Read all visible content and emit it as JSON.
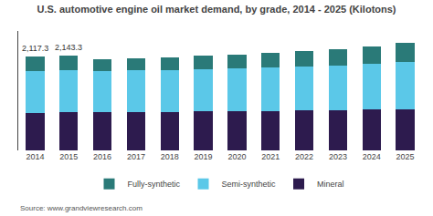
{
  "chart_data": {
    "type": "bar",
    "stacked": true,
    "title": "U.S. automotive engine oil market demand, by grade, 2014 - 2025 (Kilotons)",
    "categories": [
      "2014",
      "2015",
      "2016",
      "2017",
      "2018",
      "2019",
      "2020",
      "2021",
      "2022",
      "2023",
      "2024",
      "2025"
    ],
    "series": [
      {
        "name": "Mineral",
        "color": "#2d1b4e",
        "values": [
          847,
          857,
          862,
          870,
          876,
          882,
          888,
          895,
          902,
          910,
          918,
          926
        ]
      },
      {
        "name": "Semi-synthetic",
        "color": "#5bc8e8",
        "values": [
          955,
          960,
          930,
          935,
          945,
          960,
          975,
          990,
          1000,
          1015,
          1035,
          1070
        ]
      },
      {
        "name": "Fully-synthetic",
        "color": "#2a7a78",
        "values": [
          315,
          326,
          275,
          275,
          290,
          295,
          305,
          315,
          335,
          360,
          395,
          435
        ]
      }
    ],
    "annotations": [
      {
        "category": "2014",
        "text": "2,117.3"
      },
      {
        "category": "2015",
        "text": "2,143.3"
      }
    ],
    "source": "Source: www.grandviewresearch.com",
    "ylim": [
      0,
      2700
    ],
    "tick_labels": "x",
    "grid": false,
    "legend": "bottom"
  }
}
